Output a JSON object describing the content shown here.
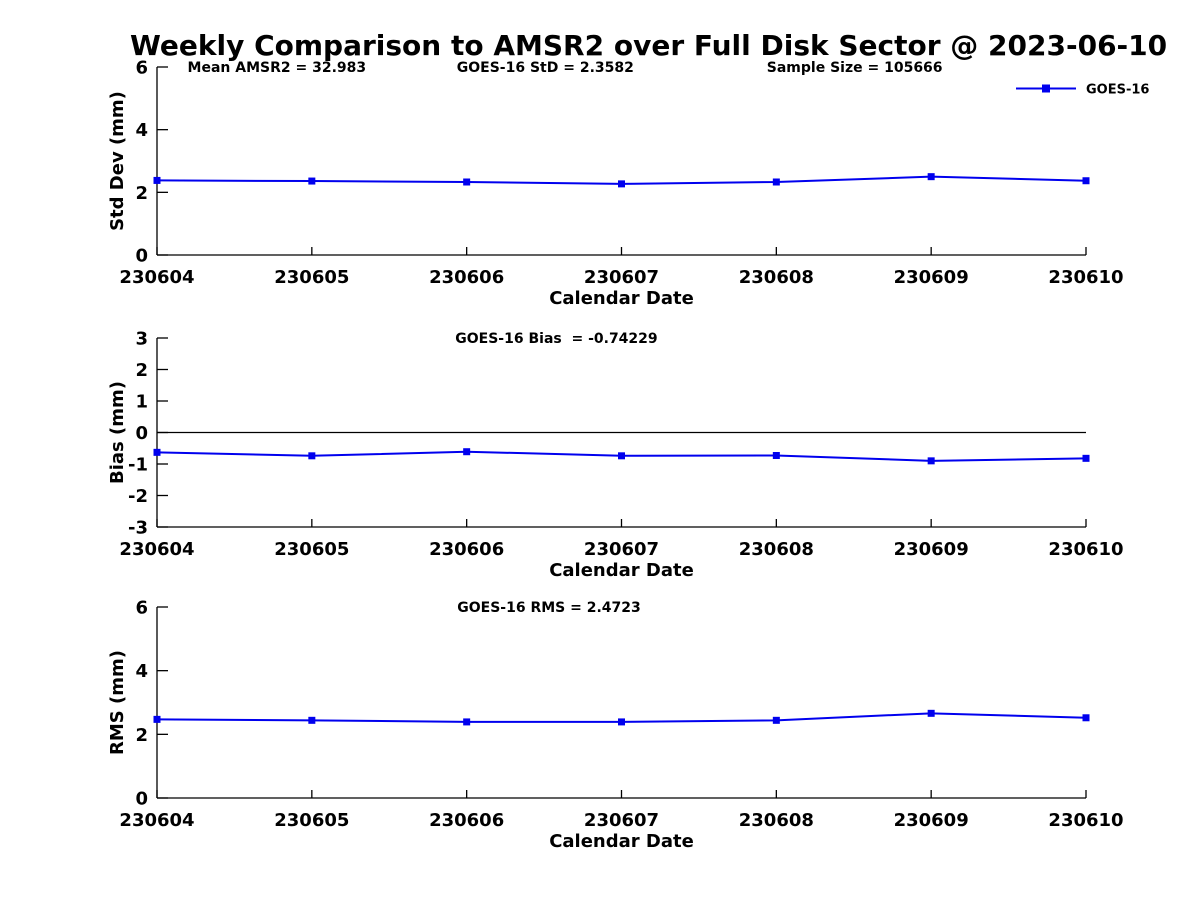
{
  "title": "Weekly Comparison to AMSR2 over Full Disk Sector @ 2023-06-10",
  "x_axis_label": "Calendar Date",
  "legend": {
    "label": "GOES-16"
  },
  "colors": {
    "series": "#0000ee",
    "axis": "#000000",
    "zero_line": "#000000",
    "text": "#000000",
    "background": "#ffffff"
  },
  "chart_data": [
    {
      "type": "line",
      "id": "std-dev",
      "title": "",
      "ylabel": "Std Dev (mm)",
      "xlabel": "Calendar Date",
      "ylim": [
        0,
        6
      ],
      "yticks": [
        0,
        2,
        4,
        6
      ],
      "categories": [
        "230604",
        "230605",
        "230606",
        "230607",
        "230608",
        "230609",
        "230610"
      ],
      "series": [
        {
          "name": "GOES-16",
          "values": [
            2.38,
            2.36,
            2.33,
            2.27,
            2.33,
            2.5,
            2.37
          ]
        }
      ],
      "grid": false,
      "zero_line": false,
      "legend_position": "top-right-outside",
      "show_legend": true,
      "annotations": [
        {
          "text": "Mean AMSR2 = 32.983",
          "xfrac": 0.129
        },
        {
          "text": "GOES-16 StD = 2.3582",
          "xfrac": 0.418
        },
        {
          "text": "Sample Size = 105666",
          "xfrac": 0.751
        }
      ]
    },
    {
      "type": "line",
      "id": "bias",
      "title": "",
      "ylabel": "Bias (mm)",
      "xlabel": "Calendar Date",
      "ylim": [
        -3,
        3
      ],
      "yticks": [
        3,
        2,
        1,
        0,
        -1,
        -2,
        -3
      ],
      "categories": [
        "230604",
        "230605",
        "230606",
        "230607",
        "230608",
        "230609",
        "230610"
      ],
      "series": [
        {
          "name": "GOES-16",
          "values": [
            -0.63,
            -0.74,
            -0.61,
            -0.74,
            -0.73,
            -0.9,
            -0.82
          ]
        }
      ],
      "grid": false,
      "zero_line": true,
      "show_legend": false,
      "annotations": [
        {
          "text": "GOES-16 Bias  = -0.74229",
          "xfrac": 0.43
        }
      ]
    },
    {
      "type": "line",
      "id": "rms",
      "title": "",
      "ylabel": "RMS (mm)",
      "xlabel": "Calendar Date",
      "ylim": [
        0,
        6
      ],
      "yticks": [
        0,
        2,
        4,
        6
      ],
      "categories": [
        "230604",
        "230605",
        "230606",
        "230607",
        "230608",
        "230609",
        "230610"
      ],
      "series": [
        {
          "name": "GOES-16",
          "values": [
            2.47,
            2.44,
            2.39,
            2.39,
            2.44,
            2.66,
            2.52
          ]
        }
      ],
      "grid": false,
      "zero_line": false,
      "show_legend": false,
      "annotations": [
        {
          "text": "GOES-16 RMS = 2.4723",
          "xfrac": 0.422
        }
      ]
    }
  ]
}
